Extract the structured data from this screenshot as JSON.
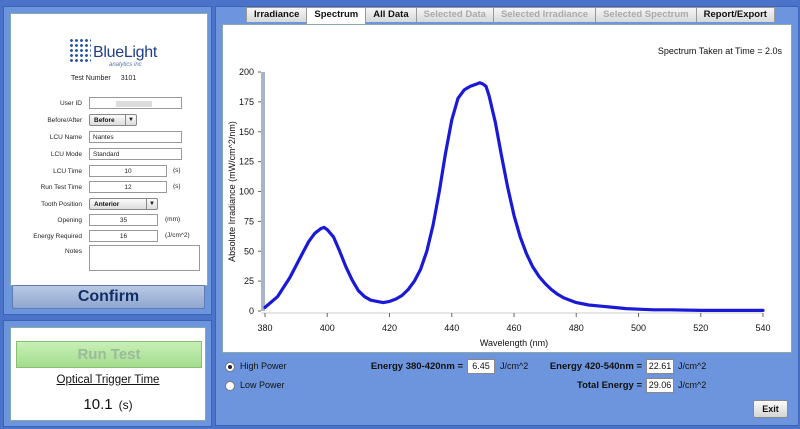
{
  "logo": {
    "name": "BlueLight",
    "sub": "analytics inc"
  },
  "form": {
    "test_number_label": "Test Number",
    "test_number": "3101",
    "fields": [
      {
        "label": "User ID",
        "value": ""
      },
      {
        "label": "Before/After",
        "value": "Before"
      },
      {
        "label": "LCU Name",
        "value": "Nantes"
      },
      {
        "label": "LCU Mode",
        "value": "Standard"
      },
      {
        "label": "LCU Time",
        "value": "10",
        "unit": "(s)"
      },
      {
        "label": "Run Test Time",
        "value": "12",
        "unit": "(s)"
      },
      {
        "label": "Tooth Position",
        "value": "Anterior"
      },
      {
        "label": "Opening",
        "value": "35",
        "unit": "(mm)"
      },
      {
        "label": "Energy Required",
        "value": "16",
        "unit": "(J/cm^2)"
      },
      {
        "label": "Notes",
        "value": ""
      }
    ],
    "dropdown_arrow": "▼"
  },
  "confirm_label": "Confirm",
  "run": {
    "button_label": "Run Test",
    "trigger_label": "Optical Trigger Time",
    "trigger_value": "10.1",
    "trigger_unit": "(s)"
  },
  "tabs": [
    {
      "label": "Irradiance",
      "state": "normal"
    },
    {
      "label": "Spectrum",
      "state": "active"
    },
    {
      "label": "All Data",
      "state": "normal"
    },
    {
      "label": "Selected Data",
      "state": "disabled"
    },
    {
      "label": "Selected Irradiance",
      "state": "disabled"
    },
    {
      "label": "Selected Spectrum",
      "state": "disabled"
    },
    {
      "label": "Report/Export",
      "state": "normal"
    }
  ],
  "spectrum_time": "Spectrum Taken at Time = 2.0s",
  "chart_data": {
    "type": "line",
    "title": "",
    "xlabel": "Wavelength (nm)",
    "ylabel": "Absolute Irradiance (mW/cm^2/nm)",
    "xlim": [
      380,
      540
    ],
    "ylim": [
      0,
      200
    ],
    "xticks": [
      380,
      400,
      420,
      440,
      460,
      480,
      500,
      520,
      540
    ],
    "yticks": [
      0,
      25,
      50,
      75,
      100,
      125,
      150,
      175,
      200
    ],
    "grid": false,
    "legend": "none",
    "color": "#1a1ad6",
    "series": [
      {
        "x": [
          380,
          384,
          388,
          392,
          394,
          396,
          398,
          399,
          400,
          402,
          404,
          406,
          408,
          410,
          412,
          414,
          416,
          418,
          420,
          422,
          424,
          426,
          428,
          430,
          432,
          434,
          436,
          438,
          440,
          442,
          444,
          446,
          448,
          449,
          450,
          451,
          452,
          454,
          456,
          458,
          460,
          462,
          464,
          466,
          468,
          470,
          472,
          474,
          476,
          478,
          480,
          484,
          488,
          492,
          496,
          500,
          505,
          510,
          520,
          530,
          540
        ],
        "y": [
          3,
          12,
          28,
          48,
          58,
          65,
          69,
          70,
          68,
          62,
          50,
          37,
          26,
          17,
          12,
          9,
          8,
          7,
          8,
          10,
          13,
          18,
          25,
          35,
          50,
          72,
          100,
          132,
          160,
          178,
          185,
          188,
          190,
          191,
          190,
          188,
          180,
          158,
          130,
          103,
          80,
          62,
          48,
          37,
          29,
          23,
          18,
          14,
          11,
          9,
          7,
          5,
          4,
          3,
          2,
          1.5,
          1,
          1,
          0.5,
          0.5,
          0.5
        ]
      }
    ]
  },
  "power": {
    "high": "High Power",
    "low": "Low Power",
    "selected": "high"
  },
  "energy": {
    "e1_label": "Energy 380-420nm =",
    "e1_value": "6.45",
    "e1_unit": "J/cm^2",
    "e2_label": "Energy 420-540nm =",
    "e2_value": "22.61",
    "e2_unit": "J/cm^2",
    "total_label": "Total Energy =",
    "total_value": "29.06",
    "total_unit": "J/cm^2"
  },
  "exit_label": "Exit"
}
